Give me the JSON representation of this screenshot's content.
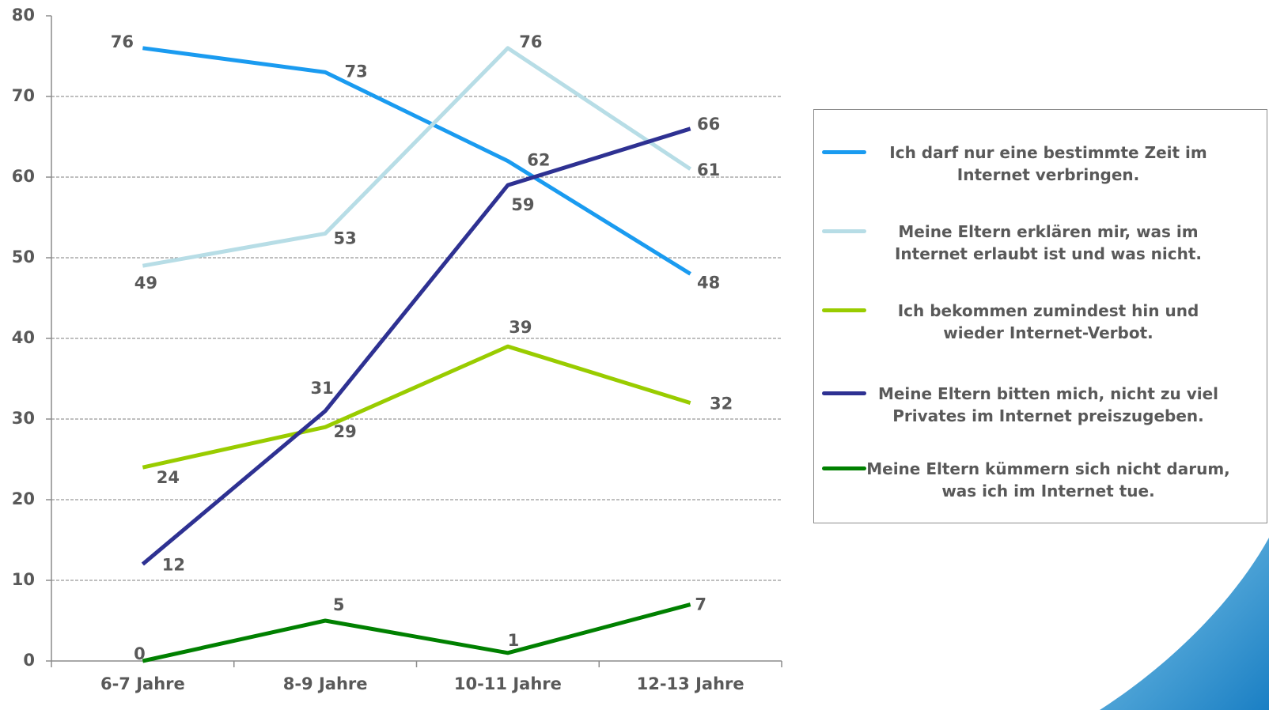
{
  "chart_data": {
    "type": "line",
    "categories": [
      "6-7 Jahre",
      "8-9 Jahre",
      "10-11 Jahre",
      "12-13 Jahre"
    ],
    "series": [
      {
        "name": "Ich darf nur eine bestimmte Zeit im Internet verbringen.",
        "color": "#1a9bf0",
        "values": [
          76,
          73,
          62,
          48
        ]
      },
      {
        "name": "Meine Eltern erklären mir, was im Internet erlaubt ist und was nicht.",
        "color": "#b7dde6",
        "values": [
          49,
          53,
          76,
          61
        ]
      },
      {
        "name": "Ich bekommen zumindest hin und wieder Internet-Verbot.",
        "color": "#99cc00",
        "values": [
          24,
          29,
          39,
          32
        ]
      },
      {
        "name": "Meine Eltern bitten mich, nicht zu viel Privates im Internet preiszugeben.",
        "color": "#2e3192",
        "values": [
          12,
          31,
          59,
          66
        ]
      },
      {
        "name": "Meine Eltern kümmern sich nicht darum, was ich im Internet tue.",
        "color": "#008000",
        "values": [
          0,
          5,
          1,
          7
        ]
      }
    ],
    "ylim": [
      0,
      80
    ],
    "yticks": [
      0,
      10,
      20,
      30,
      40,
      50,
      60,
      70,
      80
    ],
    "grid": true,
    "legend": "right"
  }
}
